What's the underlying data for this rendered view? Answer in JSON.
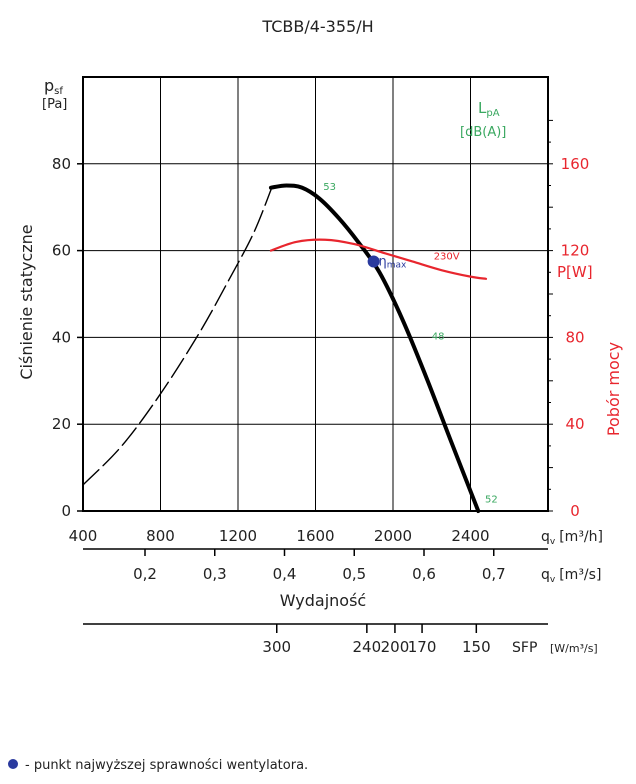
{
  "chart_data": {
    "type": "line",
    "title": "TCBB/4-355/H",
    "ylabel": "Ciśnienie statyczne",
    "ylabel_symbol": "p",
    "ylabel_symbol_sub": "sf",
    "ylabel_unit": "[Pa]",
    "xlabel": "Wydajność",
    "x_unit_m3h": "q",
    "x_unit_m3h_sub": "v",
    "x_unit_m3h_text": "[m³/h]",
    "x_unit_m3s": "q",
    "x_unit_m3s_sub": "v",
    "x_unit_m3s_text": "[m³/s]",
    "sfp_label": "SFP",
    "sfp_unit": "[W/m³/s]",
    "lpa_label": "L",
    "lpa_label_sub": "pA",
    "lpa_unit": "[dB(A)]",
    "right_ylabel": "Pobór mocy",
    "right_unit": "P[W]",
    "xlim": [
      400,
      2800
    ],
    "ylim": [
      0,
      100
    ],
    "right_ylim": [
      0,
      200
    ],
    "x_ticks": [
      "400",
      "800",
      "1200",
      "1600",
      "2000",
      "2400"
    ],
    "x_tick_values": [
      400,
      800,
      1200,
      1600,
      2000,
      2400
    ],
    "y_ticks": [
      "0",
      "20",
      "40",
      "60",
      "80"
    ],
    "y_tick_values": [
      0,
      20,
      40,
      60,
      80
    ],
    "right_ticks": [
      "0",
      "40",
      "80",
      "120",
      "160"
    ],
    "right_tick_values": [
      0,
      40,
      80,
      120,
      160
    ],
    "m3s_ticks": [
      "0,2",
      "0,3",
      "0,4",
      "0,5",
      "0,6",
      "0,7"
    ],
    "m3s_tick_values": [
      0.2,
      0.3,
      0.4,
      0.5,
      0.6,
      0.7
    ],
    "sfp_ticks": [
      "300",
      "240",
      "200",
      "170",
      "150"
    ],
    "sfp_tick_x": [
      1400,
      1865,
      2010,
      2150,
      2430
    ],
    "series": [
      {
        "name": "stall",
        "style": "dashed",
        "color": "#000000",
        "x": [
          400,
          600,
          800,
          1000,
          1150,
          1280,
          1370
        ],
        "y": [
          6,
          15,
          27,
          41,
          53,
          64,
          74
        ]
      },
      {
        "name": "pressure",
        "style": "solid",
        "color": "#000000",
        "x": [
          1370,
          1450,
          1530,
          1620,
          1720,
          1820,
          1930,
          2050,
          2170,
          2300,
          2440
        ],
        "y": [
          74.5,
          75,
          74.5,
          72,
          67.5,
          62,
          55,
          44,
          31,
          16,
          0
        ]
      },
      {
        "name": "230V",
        "style": "solid",
        "color": "#e8262e",
        "axis": "right",
        "x": [
          1370,
          1500,
          1650,
          1800,
          1950,
          2100,
          2250,
          2400,
          2480
        ],
        "y": [
          120,
          124,
          125,
          123,
          119,
          115,
          111,
          108,
          107
        ]
      }
    ],
    "annotations": [
      {
        "text": "53",
        "x": 1640,
        "y": 74
      },
      {
        "text": "48",
        "x": 2200,
        "y": 39.5
      },
      {
        "text": "52",
        "x": 2475,
        "y": 2
      },
      {
        "text": "230V",
        "x": 2210,
        "y": 116
      },
      {
        "text": "η",
        "sub": "max",
        "x": 1925,
        "y": 57.5
      }
    ],
    "eta_max_point": {
      "x": 1900,
      "y": 57.5
    },
    "grid": true,
    "legend_note": "- punkt najwyższej sprawności wentylatora."
  },
  "colors": {
    "pressure": "#000000",
    "power": "#e8262e",
    "noise": "#3aa860",
    "eta": "#2a3a9e"
  }
}
